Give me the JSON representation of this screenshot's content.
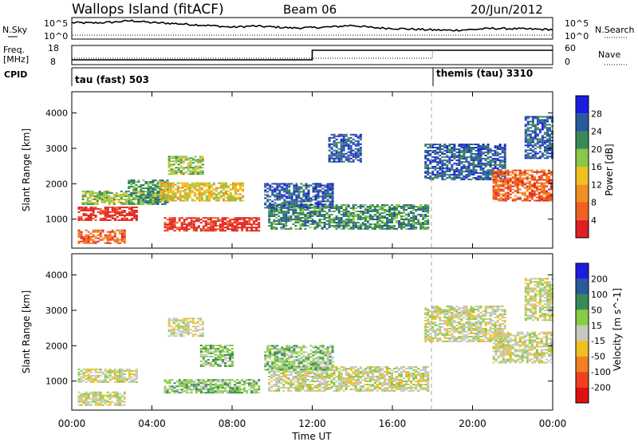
{
  "header": {
    "radar": "Wallops Island (fitACF)",
    "beam": "Beam 06",
    "date": "20/Jun/2012"
  },
  "noise_panel": {
    "left_label": "N.Sky",
    "right_label": "N.Search",
    "ticks_left": [
      "10^5",
      "10^0"
    ],
    "ticks_right": [
      "10^5",
      "10^0"
    ]
  },
  "freq_panel": {
    "left_label_1": "Freq.",
    "left_label_2": "[MHz]",
    "right_label": "Nave",
    "ticks_left": [
      "18",
      "8"
    ],
    "ticks_right": [
      "60",
      "0"
    ]
  },
  "cpid_panel": {
    "label": "CPID",
    "mode1": "tau (fast) 503",
    "mode2": "themis (tau) 3310"
  },
  "time_axis": {
    "title": "Time UT",
    "ticks": [
      "00:00",
      "04:00",
      "08:00",
      "12:00",
      "16:00",
      "20:00",
      "00:00"
    ]
  },
  "chart_data": [
    {
      "type": "heatmap",
      "name": "power",
      "ylabel": "Slant Range [km]",
      "ylim": [
        180,
        4600
      ],
      "yticks": [
        "1000",
        "2000",
        "3000",
        "4000"
      ],
      "colorbar_label": "Power [dB]",
      "colorbar_ticks": [
        "28",
        "24",
        "20",
        "16",
        "12",
        "8",
        "4"
      ],
      "colors": [
        "#1c1ce0",
        "#2a5a9c",
        "#3a8a58",
        "#8ac848",
        "#f0c020",
        "#f09020",
        "#f06020",
        "#e02020"
      ],
      "regions": [
        {
          "t0": 0.3,
          "t1": 3.2,
          "r0": 950,
          "r1": 1350,
          "level": 7
        },
        {
          "t0": 0.3,
          "t1": 2.6,
          "r0": 300,
          "r1": 700,
          "level": 6
        },
        {
          "t0": 0.5,
          "t1": 4.5,
          "r0": 1400,
          "r1": 1800,
          "level": 3
        },
        {
          "t0": 2.8,
          "t1": 4.8,
          "r0": 1400,
          "r1": 2100,
          "level": 2
        },
        {
          "t0": 4.6,
          "t1": 9.3,
          "r0": 650,
          "r1": 1050,
          "level": 7
        },
        {
          "t0": 4.4,
          "t1": 8.6,
          "r0": 1500,
          "r1": 2000,
          "level": 4
        },
        {
          "t0": 4.8,
          "t1": 6.6,
          "r0": 2250,
          "r1": 2750,
          "level": 3
        },
        {
          "t0": 9.8,
          "t1": 17.8,
          "r0": 700,
          "r1": 1400,
          "level": 2
        },
        {
          "t0": 9.6,
          "t1": 13.0,
          "r0": 1300,
          "r1": 2000,
          "level": 1
        },
        {
          "t0": 12.8,
          "t1": 14.4,
          "r0": 2600,
          "r1": 3400,
          "level": 1
        },
        {
          "t0": 17.6,
          "t1": 21.6,
          "r0": 2100,
          "r1": 3100,
          "level": 1
        },
        {
          "t0": 21.0,
          "t1": 24.0,
          "r0": 1500,
          "r1": 2400,
          "level": 6
        },
        {
          "t0": 22.6,
          "t1": 24.0,
          "r0": 2700,
          "r1": 3900,
          "level": 1
        }
      ]
    },
    {
      "type": "heatmap",
      "name": "velocity",
      "ylabel": "Slant Range [km]",
      "ylim": [
        180,
        4600
      ],
      "yticks": [
        "1000",
        "2000",
        "3000",
        "4000"
      ],
      "colorbar_label": "Velocity [m s^-1]",
      "colorbar_ticks": [
        "200",
        "100",
        "50",
        "15",
        "-15",
        "-50",
        "-100",
        "-200"
      ],
      "colors": [
        "#1c1ce0",
        "#2a5a9c",
        "#3a8a58",
        "#88cc44",
        "#c8c8c0",
        "#f0c020",
        "#f08020",
        "#f04020",
        "#e01010"
      ],
      "regions": [
        {
          "t0": 0.3,
          "t1": 3.2,
          "r0": 950,
          "r1": 1350,
          "level": 4
        },
        {
          "t0": 0.3,
          "t1": 2.6,
          "r0": 300,
          "r1": 700,
          "level": 4
        },
        {
          "t0": 4.6,
          "t1": 9.3,
          "r0": 650,
          "r1": 1050,
          "level": 3
        },
        {
          "t0": 6.4,
          "t1": 8.0,
          "r0": 1400,
          "r1": 2000,
          "level": 3
        },
        {
          "t0": 4.8,
          "t1": 6.6,
          "r0": 2250,
          "r1": 2750,
          "level": 4
        },
        {
          "t0": 9.8,
          "t1": 17.8,
          "r0": 700,
          "r1": 1400,
          "level": 4
        },
        {
          "t0": 9.6,
          "t1": 13.0,
          "r0": 1300,
          "r1": 2000,
          "level": 3
        },
        {
          "t0": 17.6,
          "t1": 21.6,
          "r0": 2100,
          "r1": 3100,
          "level": 4
        },
        {
          "t0": 21.0,
          "t1": 24.0,
          "r0": 1500,
          "r1": 2400,
          "level": 4
        },
        {
          "t0": 22.6,
          "t1": 24.0,
          "r0": 2700,
          "r1": 3900,
          "level": 4
        }
      ]
    }
  ],
  "noise_series": {
    "sky_x": [
      0,
      1,
      2,
      3,
      4,
      5,
      6,
      7,
      8,
      9,
      10,
      11,
      12,
      13,
      14,
      15,
      16,
      17,
      18,
      19,
      20,
      21,
      22,
      23,
      24
    ],
    "sky_log": [
      4.3,
      4.2,
      4.4,
      4.8,
      4.3,
      4.1,
      3.8,
      3.5,
      3.1,
      3.4,
      3.2,
      2.9,
      3.0,
      3.2,
      3.6,
      3.0,
      2.8,
      2.6,
      2.4,
      2.3,
      2.5,
      2.8,
      2.7,
      2.6,
      2.5
    ]
  },
  "freq_series": {
    "switch_hour": 12,
    "before_mhz": 10.5,
    "after_mhz": 15.5,
    "nave_before": 20,
    "nave_after": 45,
    "mode_switch_hour": 18
  }
}
